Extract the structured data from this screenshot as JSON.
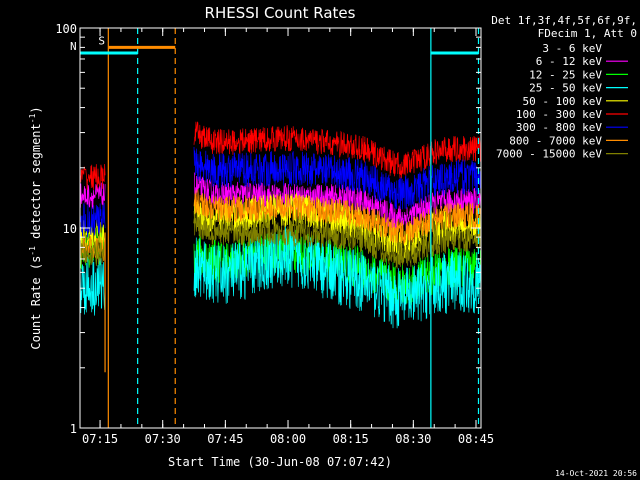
{
  "chart_data": {
    "type": "line",
    "title": "RHESSI Count Rates",
    "xlabel": "Start Time (30-Jun-08 07:07:42)",
    "ylabel_main": "Count Rate (s",
    "ylabel_sup1": "-1",
    "ylabel_mid": " detector segment",
    "ylabel_sup2": "-1",
    "ylabel_end": ")",
    "y_scale": "log",
    "ylim": [
      1,
      100
    ],
    "xlim": [
      7.17,
      8.77
    ],
    "x_ticks": [
      {
        "v": 7.25,
        "label": "07:15"
      },
      {
        "v": 7.5,
        "label": "07:30"
      },
      {
        "v": 7.75,
        "label": "07:45"
      },
      {
        "v": 8.0,
        "label": "08:00"
      },
      {
        "v": 8.25,
        "label": "08:15"
      },
      {
        "v": 8.5,
        "label": "08:30"
      },
      {
        "v": 8.75,
        "label": "08:45"
      }
    ],
    "y_ticks": [
      {
        "v": 1,
        "label": "1"
      },
      {
        "v": 10,
        "label": "10"
      },
      {
        "v": 100,
        "label": "100"
      }
    ],
    "legend_header": [
      "Det 1f,3f,4f,5f,6f,9f,",
      "FDecim 1, Att 0"
    ],
    "legend_position": "right",
    "series": [
      {
        "name": "3 - 6 keV",
        "color": "#ffffff",
        "y_pre": 6.2,
        "y_main": 9.0,
        "noise": 0.05,
        "bump": 0.9
      },
      {
        "name": "6 - 12 keV",
        "color": "#ff00ff",
        "y_pre": 14.5,
        "y_main": 14.8,
        "noise": 0.03,
        "bump": 0.0
      },
      {
        "name": "12 - 25 keV",
        "color": "#00ff00",
        "y_pre": 8.0,
        "y_main": 6.8,
        "noise": 0.05,
        "bump": 0.7
      },
      {
        "name": "25 - 50 keV",
        "color": "#00ffff",
        "y_pre": 5.2,
        "y_main": 5.8,
        "noise": 0.07,
        "bump": 1.2
      },
      {
        "name": "50 - 100 keV",
        "color": "#ffff00",
        "y_pre": 9.0,
        "y_main": 11.2,
        "noise": 0.04,
        "bump": 0.6
      },
      {
        "name": "100 - 300 keV",
        "color": "#ff0000",
        "y_pre": 18.0,
        "y_main": 27.0,
        "noise": 0.03,
        "bump": 0.3
      },
      {
        "name": "300 - 800 keV",
        "color": "#0000ff",
        "y_pre": 11.0,
        "y_main": 19.5,
        "noise": 0.04,
        "bump": 0.2
      },
      {
        "name": "800 - 7000 keV",
        "color": "#ff8c00",
        "y_pre": 8.0,
        "y_main": 12.5,
        "noise": 0.03,
        "bump": 0.2
      },
      {
        "name": "7000 - 15000 keV",
        "color": "#808000",
        "y_pre": 7.5,
        "y_main": 9.5,
        "noise": 0.03,
        "bump": 0.1
      }
    ],
    "data_windows": [
      [
        7.17,
        7.27
      ],
      [
        7.625,
        8.77
      ]
    ],
    "attenuator_marks": [
      {
        "label": "S",
        "color": "#ff8c00",
        "x_start": 7.283,
        "x_end": 7.55,
        "y": 80
      },
      {
        "label": "N",
        "color": "#00ffff",
        "x_start": 7.17,
        "x_end": 7.4,
        "y": 75
      },
      {
        "label": "",
        "color": "#00ffff",
        "x_start": 8.57,
        "x_end": 8.76,
        "y": 75
      }
    ],
    "vertical_lines": [
      {
        "x": 7.283,
        "color": "#ff8c00",
        "style": "solid"
      },
      {
        "x": 7.55,
        "color": "#ff8c00",
        "style": "dashed"
      },
      {
        "x": 7.4,
        "color": "#00ffff",
        "style": "dashed"
      },
      {
        "x": 8.57,
        "color": "#00ffff",
        "style": "solid"
      },
      {
        "x": 8.76,
        "color": "#00ffff",
        "style": "dashed"
      }
    ],
    "footer_date": "14-Oct-2021 20:56"
  }
}
